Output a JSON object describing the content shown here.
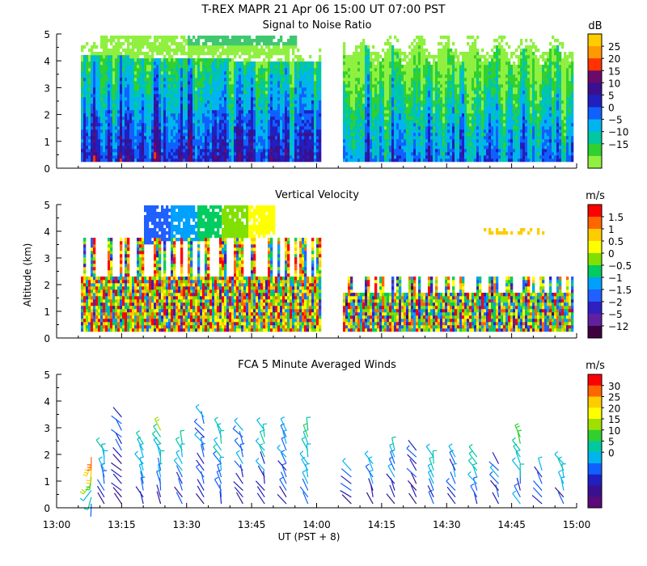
{
  "figure": {
    "title": "T-REX  MAPR 21 Apr 06  15:00 UT  07:00  PST",
    "xlabel": "UT  (PST + 8)",
    "ylabel": "Altitude (km)"
  },
  "chart_data": [
    {
      "type": "heatmap",
      "title": "Signal to Noise Ratio",
      "xlabel": "UT  (PST + 8)",
      "ylabel": "Altitude (km)",
      "x_ticks": [
        "13:00",
        "13:15",
        "13:30",
        "13:45",
        "14:00",
        "14:15",
        "14:30",
        "14:45",
        "15:00"
      ],
      "y_ticks": [
        "0",
        "1",
        "2",
        "3",
        "4",
        "5"
      ],
      "xlim_minutes": [
        0,
        120
      ],
      "ylim": [
        0,
        5
      ],
      "data_gap_minutes": [
        61,
        66
      ],
      "colorbar": {
        "unit": "dB",
        "labels": [
          "25",
          "20",
          "15",
          "10",
          "5",
          "0",
          "−5",
          "−10",
          "−15"
        ],
        "colors": [
          "#ffcc00",
          "#ff9900",
          "#ff3300",
          "#6a0a6a",
          "#3a1090",
          "#2020c0",
          "#1060ff",
          "#00b4f0",
          "#00c8a0",
          "#30d030",
          "#90f040"
        ]
      }
    },
    {
      "type": "heatmap",
      "title": "Vertical Velocity",
      "xlabel": "UT  (PST + 8)",
      "ylabel": "Altitude (km)",
      "x_ticks": [
        "13:00",
        "13:15",
        "13:30",
        "13:45",
        "14:00",
        "14:15",
        "14:30",
        "14:45",
        "15:00"
      ],
      "y_ticks": [
        "0",
        "1",
        "2",
        "3",
        "4",
        "5"
      ],
      "xlim_minutes": [
        0,
        120
      ],
      "ylim": [
        0,
        5
      ],
      "data_gap_minutes": [
        61,
        66
      ],
      "colorbar": {
        "unit": "m/s",
        "labels": [
          "1.5",
          "1",
          "0.5",
          "0",
          "−0.5",
          "−1",
          "−1.5",
          "−2",
          "−5",
          "−12"
        ],
        "colors": [
          "#ff0000",
          "#ff6600",
          "#ffcc00",
          "#ffff00",
          "#80e000",
          "#00cc60",
          "#00a0ff",
          "#2060ff",
          "#3020c0",
          "#6020a0",
          "#400040"
        ]
      }
    },
    {
      "type": "barbs",
      "title": "FCA 5 Minute Averaged Winds",
      "xlabel": "UT  (PST + 8)",
      "ylabel": "Altitude (km)",
      "x_ticks": [
        "13:00",
        "13:15",
        "13:30",
        "13:45",
        "14:00",
        "14:15",
        "14:30",
        "14:45",
        "15:00"
      ],
      "y_ticks": [
        "0",
        "1",
        "2",
        "3",
        "4",
        "5"
      ],
      "xlim_minutes": [
        0,
        120
      ],
      "ylim": [
        0,
        5
      ],
      "profiles": [
        {
          "t": 8,
          "top": 2.0,
          "dir": 200,
          "spd": 22
        },
        {
          "t": 11,
          "top": 2.2,
          "dir": 340,
          "spd": 10
        },
        {
          "t": 15,
          "top": 3.4,
          "dir": 320,
          "spd": 6
        },
        {
          "t": 20,
          "top": 2.6,
          "dir": 330,
          "spd": 12
        },
        {
          "t": 24,
          "top": 2.9,
          "dir": 340,
          "spd": 13
        },
        {
          "t": 29,
          "top": 2.6,
          "dir": 335,
          "spd": 11
        },
        {
          "t": 34,
          "top": 3.4,
          "dir": 330,
          "spd": 9
        },
        {
          "t": 38,
          "top": 3.0,
          "dir": 340,
          "spd": 12
        },
        {
          "t": 43,
          "top": 3.1,
          "dir": 330,
          "spd": 10
        },
        {
          "t": 48,
          "top": 2.9,
          "dir": 335,
          "spd": 11
        },
        {
          "t": 53,
          "top": 2.9,
          "dir": 330,
          "spd": 10
        },
        {
          "t": 58,
          "top": 3.0,
          "dir": 340,
          "spd": 14
        },
        {
          "t": 68,
          "top": 1.5,
          "dir": 320,
          "spd": 6
        },
        {
          "t": 73,
          "top": 1.7,
          "dir": 335,
          "spd": 9
        },
        {
          "t": 78,
          "top": 2.3,
          "dir": 330,
          "spd": 10
        },
        {
          "t": 83,
          "top": 2.2,
          "dir": 320,
          "spd": 6
        },
        {
          "t": 87,
          "top": 1.9,
          "dir": 340,
          "spd": 12
        },
        {
          "t": 92,
          "top": 2.1,
          "dir": 330,
          "spd": 10
        },
        {
          "t": 97,
          "top": 2.0,
          "dir": 335,
          "spd": 12
        },
        {
          "t": 102,
          "top": 1.8,
          "dir": 330,
          "spd": 8
        },
        {
          "t": 107,
          "top": 2.8,
          "dir": 340,
          "spd": 16
        },
        {
          "t": 112,
          "top": 1.6,
          "dir": 330,
          "spd": 9
        },
        {
          "t": 117,
          "top": 1.7,
          "dir": 335,
          "spd": 11
        }
      ],
      "colorbar": {
        "unit": "m/s",
        "labels": [
          "30",
          "25",
          "20",
          "15",
          "10",
          "5",
          "0"
        ],
        "colors": [
          "#ff0000",
          "#ff6600",
          "#ffcc00",
          "#ffff00",
          "#a0e000",
          "#30d030",
          "#00c8a0",
          "#00b4f0",
          "#1060ff",
          "#2020c0",
          "#3a1090",
          "#5a0a7a"
        ]
      }
    }
  ]
}
